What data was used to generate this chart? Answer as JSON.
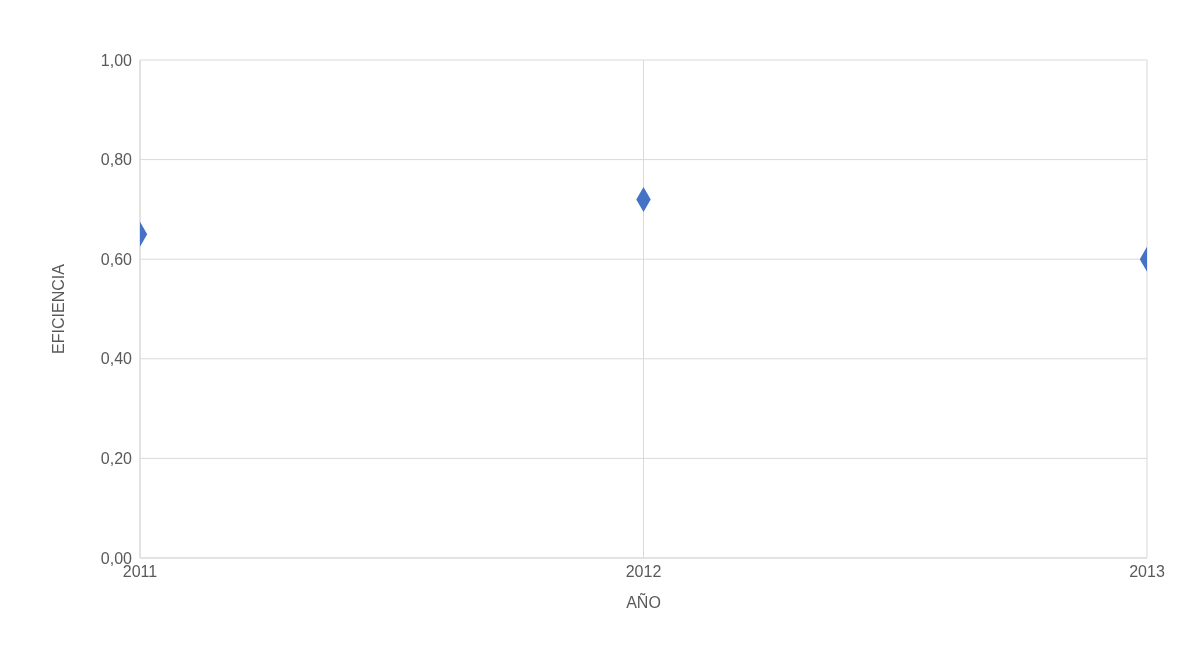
{
  "chart_data": {
    "type": "scatter",
    "xlabel": "AÑO",
    "ylabel": "EFICIENCIA",
    "x": [
      2011,
      2012,
      2013
    ],
    "series": [
      {
        "color": "#4472c4",
        "values": [
          0.65,
          0.72,
          0.6
        ]
      }
    ],
    "xlim": [
      2011,
      2013
    ],
    "xticks": [
      2011,
      2012,
      2013
    ],
    "ylim": [
      0,
      1
    ],
    "yticks": [
      {
        "value": 0,
        "label": "0,00"
      },
      {
        "value": 0.2,
        "label": "0,20"
      },
      {
        "value": 0.4,
        "label": "0,40"
      },
      {
        "value": 0.6,
        "label": "0,60"
      },
      {
        "value": 0.8,
        "label": "0,80"
      },
      {
        "value": 1,
        "label": "1,00"
      }
    ],
    "grid": true,
    "marker": "diamond"
  }
}
